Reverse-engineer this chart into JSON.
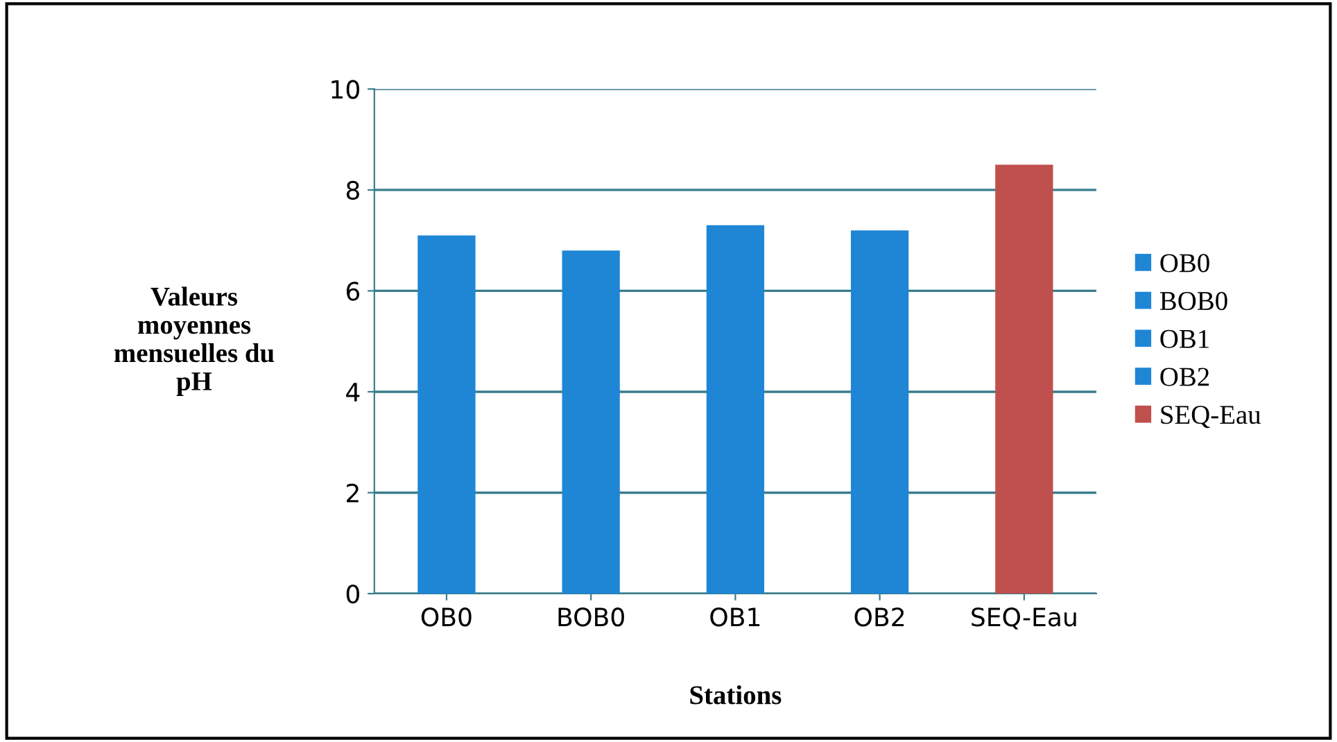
{
  "chart_data": {
    "type": "bar",
    "categories": [
      "OB0",
      "BOB0",
      "OB1",
      "OB2",
      "SEQ-Eau"
    ],
    "series": [
      {
        "name": "OB0",
        "color": "#1f86d6",
        "values": [
          7.1,
          null,
          null,
          null,
          null
        ]
      },
      {
        "name": "BOB0",
        "color": "#1f86d6",
        "values": [
          null,
          6.8,
          null,
          null,
          null
        ]
      },
      {
        "name": "OB1",
        "color": "#1f86d6",
        "values": [
          null,
          null,
          7.3,
          null,
          null
        ]
      },
      {
        "name": "OB2",
        "color": "#1f86d6",
        "values": [
          null,
          null,
          null,
          7.2,
          null
        ]
      },
      {
        "name": "SEQ-Eau",
        "color": "#c0504d",
        "values": [
          null,
          null,
          null,
          null,
          8.5
        ]
      }
    ],
    "xlabel": "Stations",
    "ylabel": "Valeurs\nmoyennes\nmensuelles du\npH",
    "ylim": [
      0,
      10
    ],
    "yticks": [
      0,
      2,
      4,
      6,
      8,
      10
    ],
    "grid": "y",
    "legend": "right"
  }
}
